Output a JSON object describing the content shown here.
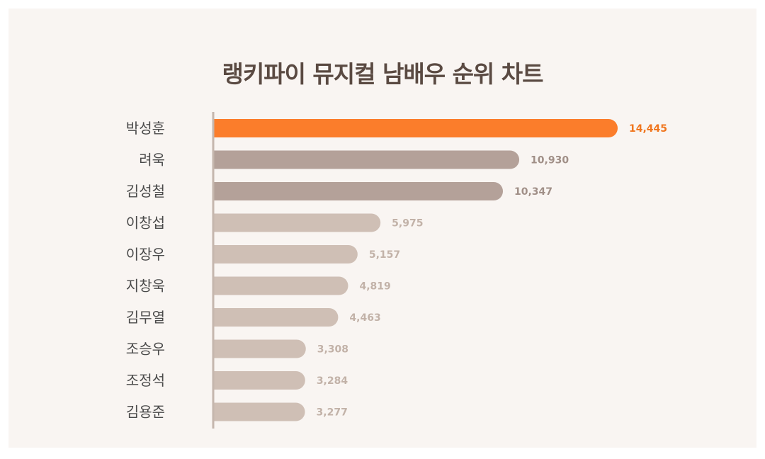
{
  "chart_data": {
    "type": "bar",
    "orientation": "horizontal",
    "title": "랭키파이 뮤지컬 남배우 순위 차트",
    "categories": [
      "박성훈",
      "려욱",
      "김성철",
      "이창섭",
      "이장우",
      "지창욱",
      "김무열",
      "조승우",
      "조정석",
      "김용준"
    ],
    "values": [
      14445,
      10930,
      10347,
      5975,
      5157,
      4819,
      4463,
      3308,
      3284,
      3277
    ],
    "value_labels": [
      "14,445",
      "10,930",
      "10,347",
      "5,975",
      "5,157",
      "4,819",
      "4,463",
      "3,308",
      "3,284",
      "3,277"
    ],
    "xlim": [
      0,
      14445
    ],
    "grid": false,
    "legend": "none",
    "colors": {
      "rank1_bar": "#fb7d2b",
      "rank1_label": "#f0761e",
      "rank2_3_bar": "#b4a199",
      "rank2_3_label": "#a08f87",
      "other_bar": "#cfbfb5",
      "other_label": "#c2b2a8",
      "axis": "#c5b6ad",
      "background": "#f9f5f2",
      "title": "#5a4a42"
    }
  }
}
